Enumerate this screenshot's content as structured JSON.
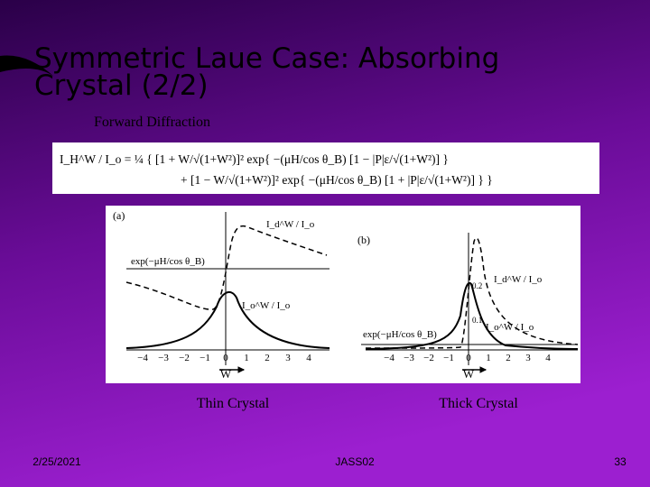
{
  "title": "Symmetric Laue Case: Absorbing Crystal (2/2)",
  "subtitle": "Forward Diffraction",
  "equation": {
    "line1": "I_H^W / I_o = ¼ { [1 + W/√(1+W²)]² exp{ −(μH/cos θ_B) [1 − |P|ε/√(1+W²)] }",
    "line2": "+ [1 − W/√(1+W²)]² exp{ −(μH/cos θ_B) [1 + |P|ε/√(1+W²)] } }"
  },
  "figures": [
    {
      "label": "(a)",
      "caption": "Thin Crystal",
      "x_label": "W",
      "x_ticks": [
        "−4",
        "−3",
        "−2",
        "−1",
        "0",
        "1",
        "2",
        "3",
        "4"
      ],
      "exp_label": "exp(−μH/cos θ_B)",
      "diffracted_label": "I_d^W / I_o",
      "forward_label": "I_o^W / I_o"
    },
    {
      "label": "(b)",
      "caption": "Thick Crystal",
      "x_label": "W",
      "x_ticks": [
        "−4",
        "−3",
        "−2",
        "−1",
        "0",
        "1",
        "2",
        "3",
        "4"
      ],
      "y_ticks": [
        "0.2",
        "0.1"
      ],
      "exp_label": "exp(−μH/cos θ_B)",
      "diffracted_label": "I_d^W / I_o",
      "forward_label": "I_o^W / I_o"
    }
  ],
  "footer": {
    "date": "2/25/2021",
    "center": "JASS02",
    "page": "33"
  }
}
